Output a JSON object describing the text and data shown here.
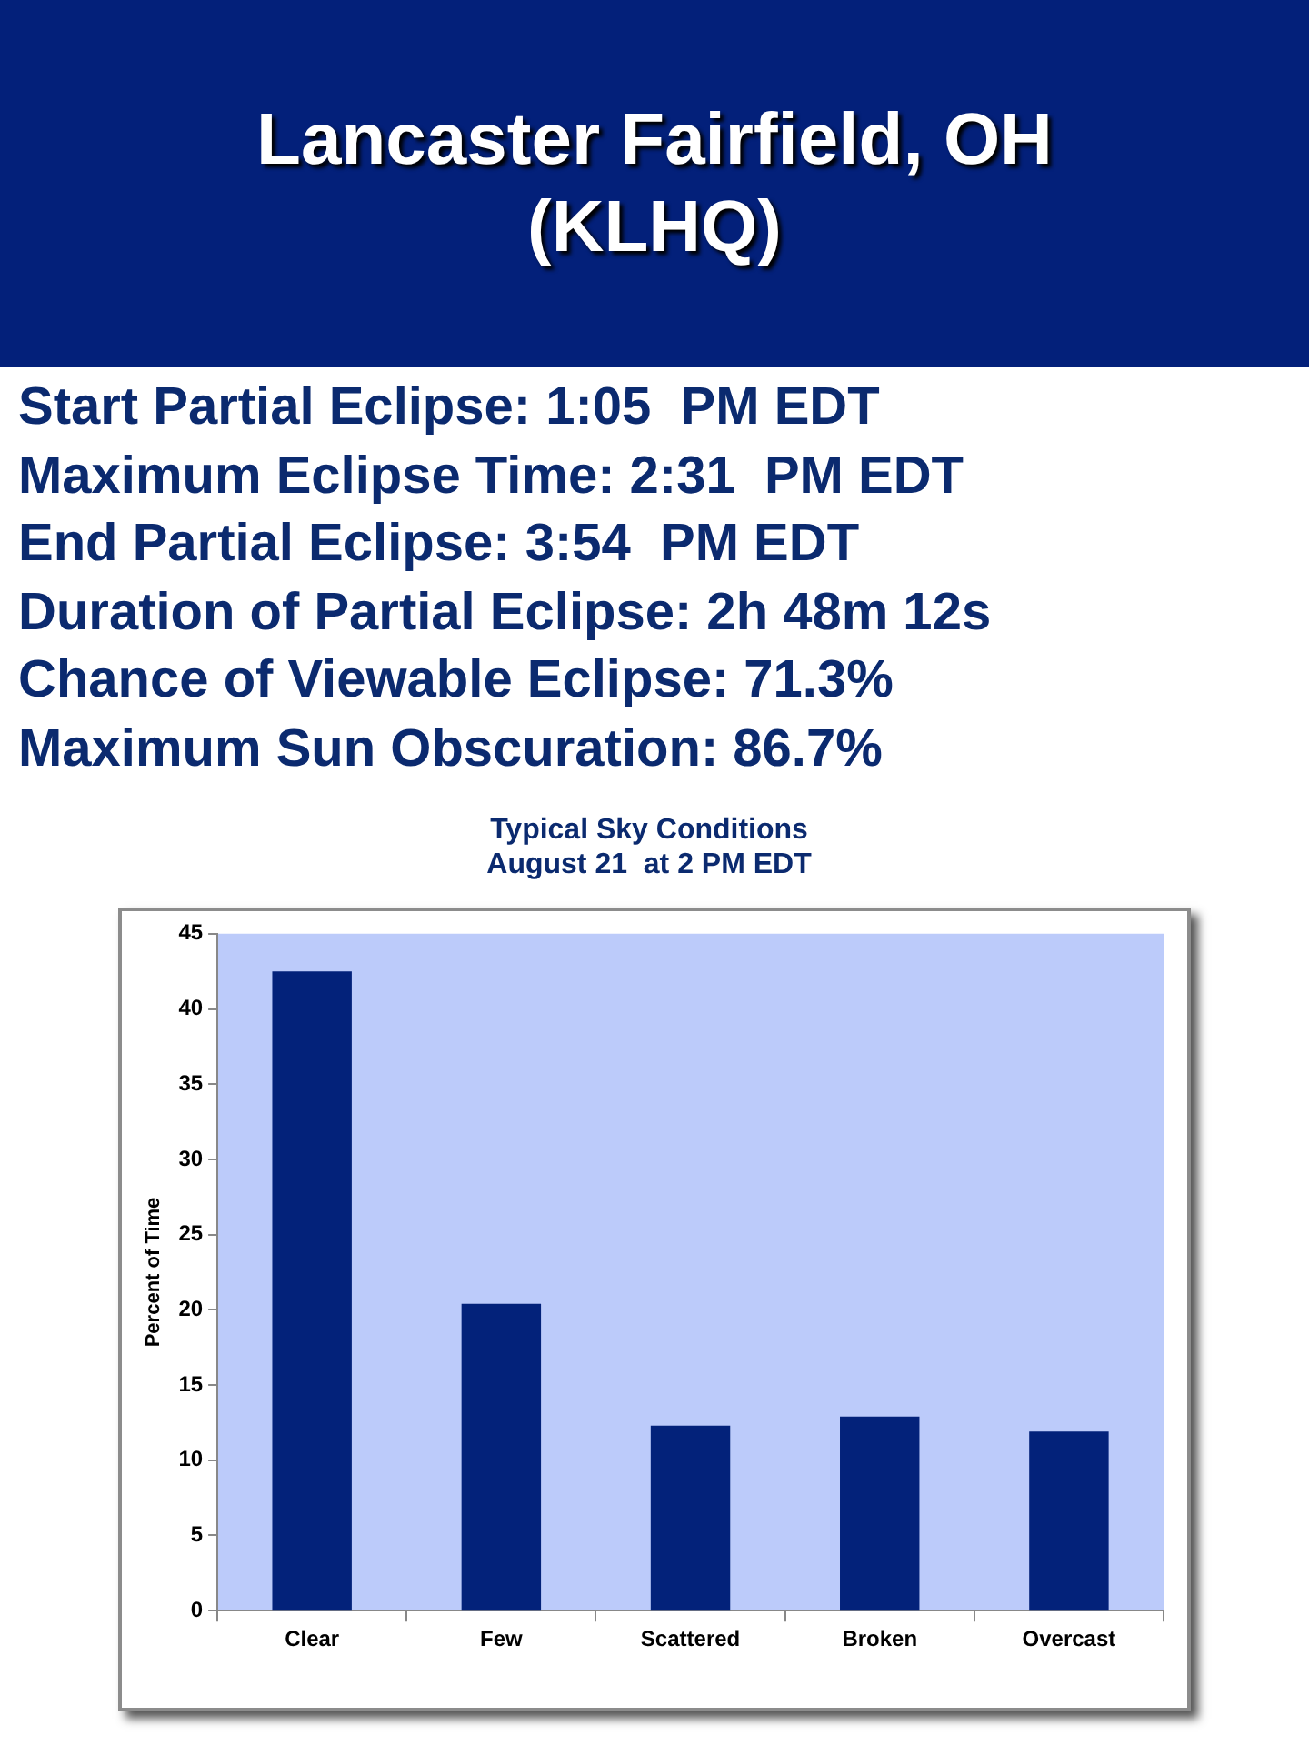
{
  "chart_data": {
    "type": "bar",
    "title": "Lancaster Fairfield, OH\n(KLHQ)",
    "subtitle": "Typical Sky Conditions\nAugust 21  at 2 PM EDT",
    "annotations": [
      "Start Partial Eclipse: 1:05  PM EDT",
      "Maximum Eclipse Time: 2:31  PM EDT",
      "End Partial Eclipse: 3:54  PM EDT",
      "Duration of Partial Eclipse: 2h 48m 12s",
      "Chance of Viewable Eclipse: 71.3%",
      "Maximum Sun Obscuration: 86.7%"
    ],
    "ylabel": "Percent of Time",
    "categories": [
      "Clear",
      "Few",
      "Scattered",
      "Broken",
      "Overcast"
    ],
    "values": [
      42.5,
      20.4,
      12.3,
      12.9,
      11.9
    ],
    "color": "#03227a",
    "ylim": [
      0,
      45
    ],
    "yticks": [
      0,
      5,
      10,
      15,
      20,
      25,
      30,
      35,
      40,
      45
    ],
    "grid": false,
    "legend": false
  }
}
